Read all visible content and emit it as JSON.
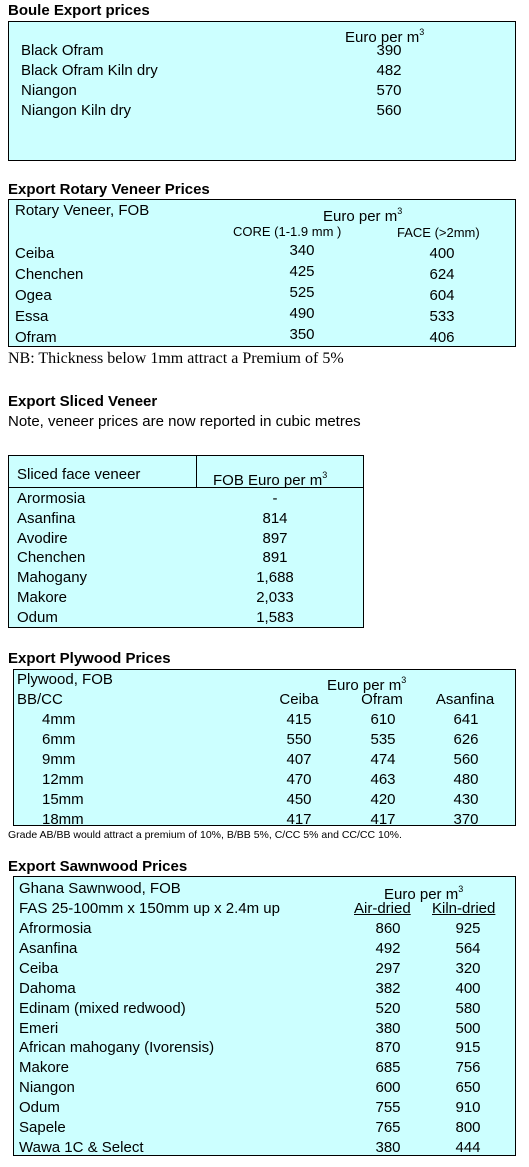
{
  "boule": {
    "title": "Boule Export prices",
    "unit": "Euro per m",
    "unit_sup": "3",
    "rows": [
      {
        "name": "Black Ofram",
        "price": "390"
      },
      {
        "name": "Black Ofram  Kiln dry",
        "price": "482"
      },
      {
        "name": "Niangon",
        "price": "570"
      },
      {
        "name": "Niangon Kiln dry",
        "price": "560"
      }
    ]
  },
  "rotary": {
    "title": "Export Rotary Veneer Prices",
    "label": "Rotary Veneer,  FOB",
    "unit": "Euro  per m",
    "unit_sup": "3",
    "col_core": "CORE (1-1.9 mm )",
    "col_face": "FACE (>2mm)",
    "rows": [
      {
        "name": "Ceiba",
        "core": "340",
        "face": "400"
      },
      {
        "name": "Chenchen",
        "core": "425",
        "face": "624"
      },
      {
        "name": "Ogea",
        "core": "525",
        "face": "604"
      },
      {
        "name": "Essa",
        "core": "490",
        "face": "533"
      },
      {
        "name": "Ofram",
        "core": "350",
        "face": "406"
      }
    ],
    "note": "NB: Thickness below 1mm attract a Premium of 5%"
  },
  "sliced": {
    "title": "Export Sliced Veneer",
    "subtitle": "Note, veneer prices are now reported in cubic metres",
    "col_name": "Sliced face veneer",
    "col_price": "FOB Euro per m",
    "col_sup": "3",
    "rows": [
      {
        "name": "Arormosia",
        "price": "-"
      },
      {
        "name": "Asanfina",
        "price": "814"
      },
      {
        "name": "Avodire",
        "price": "897"
      },
      {
        "name": "Chenchen",
        "price": "891"
      },
      {
        "name": "Mahogany",
        "price": "1,688"
      },
      {
        "name": "Makore",
        "price": "2,033"
      },
      {
        "name": "Odum",
        "price": "1,583"
      }
    ]
  },
  "plywood": {
    "title": "Export Plywood Prices",
    "label": "Plywood, FOB",
    "grade": "BB/CC",
    "unit": "Euro per m",
    "unit_sup": "3",
    "cols": [
      "Ceiba",
      "Ofram",
      "Asanfina"
    ],
    "rows": [
      {
        "size": "4mm",
        "v": [
          "415",
          "610",
          "641"
        ]
      },
      {
        "size": "6mm",
        "v": [
          "550",
          "535",
          "626"
        ]
      },
      {
        "size": "9mm",
        "v": [
          "407",
          "474",
          "560"
        ]
      },
      {
        "size": "12mm",
        "v": [
          "470",
          "463",
          "480"
        ]
      },
      {
        "size": "15mm",
        "v": [
          "450",
          "420",
          "430"
        ]
      },
      {
        "size": "18mm",
        "v": [
          "417",
          "417",
          "370"
        ]
      }
    ],
    "note": "Grade AB/BB would attract a premium of 10%, B/BB 5%, C/CC 5% and CC/CC 10%."
  },
  "sawn": {
    "title": "Export Sawnwood Prices",
    "label": "Ghana Sawnwood, FOB",
    "spec": "FAS 25-100mm x 150mm up x 2.4m up",
    "unit": "Euro per m",
    "unit_sup": "3",
    "col_air": "Air-dried",
    "col_kiln": "Kiln-dried",
    "rows": [
      {
        "name": "Afrormosia",
        "air": "860",
        "kiln": "925"
      },
      {
        "name": "Asanfina",
        "air": "492",
        "kiln": "564"
      },
      {
        "name": "Ceiba",
        "air": "297",
        "kiln": "320"
      },
      {
        "name": "Dahoma",
        "air": "382",
        "kiln": "400"
      },
      {
        "name": "Edinam (mixed redwood)",
        "air": "520",
        "kiln": "580"
      },
      {
        "name": "Emeri",
        "air": "380",
        "kiln": "500"
      },
      {
        "name": "African mahogany (Ivorensis)",
        "air": "870",
        "kiln": "915"
      },
      {
        "name": "Makore",
        "air": "685",
        "kiln": "756"
      },
      {
        "name": "Niangon",
        "air": "600",
        "kiln": "650"
      },
      {
        "name": "Odum",
        "air": "755",
        "kiln": "910"
      },
      {
        "name": "Sapele",
        "air": "765",
        "kiln": "800"
      },
      {
        "name": "Wawa 1C & Select",
        "air": "380",
        "kiln": "444"
      }
    ]
  }
}
